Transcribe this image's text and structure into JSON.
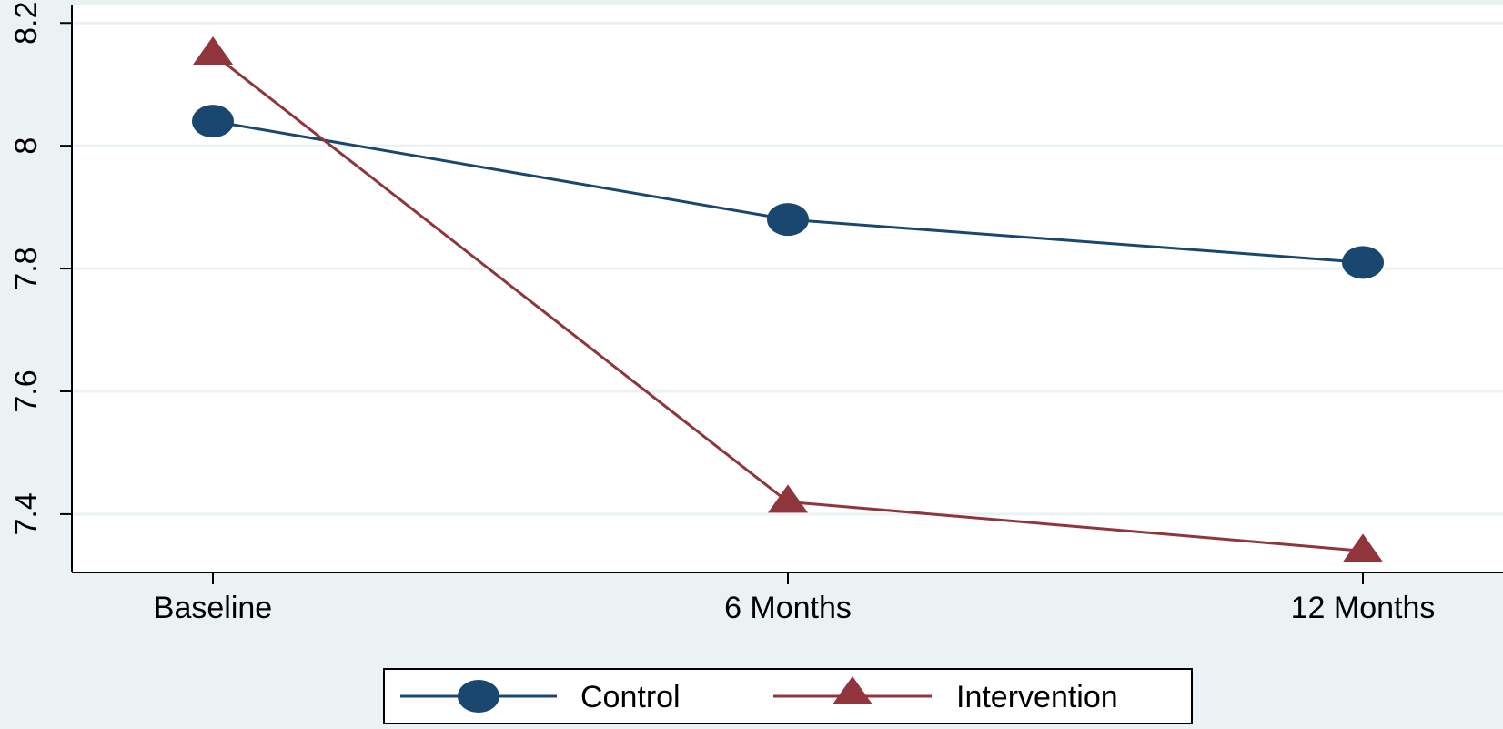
{
  "chart_data": {
    "type": "line",
    "categories": [
      "Baseline",
      "6 Months",
      "12 Months"
    ],
    "series": [
      {
        "name": "Control",
        "values": [
          8.04,
          7.88,
          7.81
        ],
        "color": "#1a476f",
        "marker": "circle"
      },
      {
        "name": "Intervention",
        "values": [
          8.15,
          7.42,
          7.34
        ],
        "color": "#90353b",
        "marker": "triangle"
      }
    ],
    "y_ticks": [
      "7.4",
      "7.6",
      "7.8",
      "8",
      "8.2"
    ],
    "ylim": [
      7.305,
      8.23
    ],
    "grid": true,
    "legend_position": "bottom-center",
    "colors": {
      "background": "#eaf2f3",
      "plot_background": "#ffffff",
      "grid": "#eaf2f3",
      "axis": "#000000"
    }
  }
}
